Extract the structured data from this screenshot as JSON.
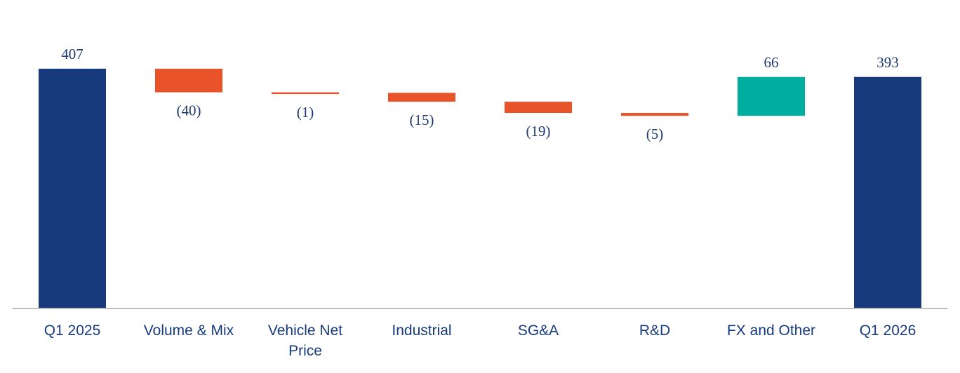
{
  "chart_data": {
    "type": "bar",
    "subtype": "waterfall",
    "title": "",
    "xlabel": "",
    "ylabel": "",
    "grid": false,
    "legend": "none",
    "ylim": [
      0,
      407
    ],
    "categories": [
      [
        "Q1 2025"
      ],
      [
        "Volume & Mix"
      ],
      [
        "Vehicle Net",
        "Price"
      ],
      [
        "Industrial"
      ],
      [
        "SG&A"
      ],
      [
        "R&D"
      ],
      [
        "FX and Other"
      ],
      [
        "Q1 2026"
      ]
    ],
    "values": [
      407,
      -40,
      -1,
      -15,
      -19,
      -5,
      66,
      393
    ],
    "kinds": [
      "total",
      "delta",
      "delta",
      "delta",
      "delta",
      "delta",
      "delta",
      "total"
    ],
    "data_labels": [
      "407",
      "(40)",
      "(1)",
      "(15)",
      "(19)",
      "(5)",
      "66",
      "393"
    ],
    "colors": {
      "total": "#163a7c",
      "decrease": "#e8532a",
      "increase": "#00ae9f",
      "axis": "#bfbfbf",
      "label": "#163a7c"
    }
  }
}
